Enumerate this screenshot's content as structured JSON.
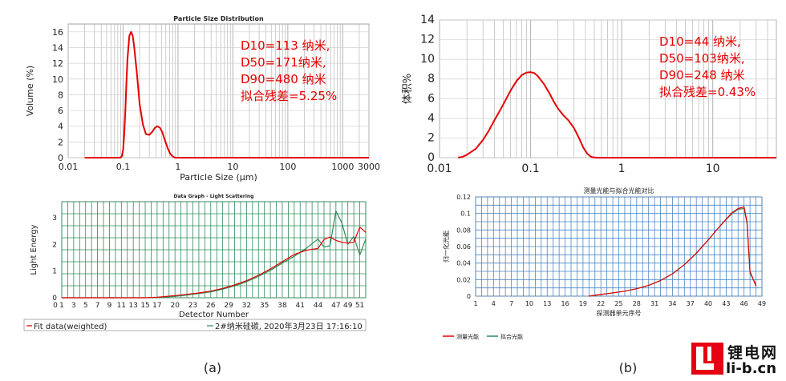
{
  "chart_data": [
    {
      "id": "a_top",
      "type": "line",
      "title": "Particle Size Distribution",
      "xlabel": "Particle Size (μm)",
      "ylabel": "Volume (%)",
      "xscale": "log",
      "xlim": [
        0.01,
        3000
      ],
      "ylim": [
        0,
        17
      ],
      "xticks": [
        "0.01",
        "0.1",
        "1",
        "10",
        "100",
        "1000",
        "3000"
      ],
      "xtick_values": [
        0.01,
        0.1,
        1,
        10,
        100,
        1000,
        3000
      ],
      "yticks": [
        0,
        2,
        4,
        6,
        8,
        10,
        12,
        14,
        16
      ],
      "grid": true,
      "line_color": "#e60000",
      "annotations": [
        "D10=113 纳米,",
        "D50=171纳米,",
        "D90=480 纳米",
        "拟合残差=5.25%"
      ],
      "annotation_color": "#e60000",
      "series": [
        {
          "x": [
            0.02,
            0.09,
            0.095,
            0.1,
            0.105,
            0.11,
            0.115,
            0.12,
            0.13,
            0.14,
            0.15,
            0.16,
            0.18,
            0.2,
            0.23,
            0.26,
            0.3,
            0.34,
            0.38,
            0.42,
            0.47,
            0.52,
            0.58,
            0.65,
            0.72,
            0.8,
            0.85,
            0.9,
            1.0,
            3000
          ],
          "y": [
            0,
            0,
            0.2,
            1.0,
            3.0,
            6.0,
            9.5,
            12.5,
            15.5,
            16.0,
            15.5,
            14.0,
            10.5,
            6.8,
            4.2,
            3.0,
            2.9,
            3.3,
            3.8,
            4.0,
            3.8,
            3.2,
            2.2,
            1.2,
            0.5,
            0.15,
            0.05,
            0,
            0,
            0
          ]
        }
      ]
    },
    {
      "id": "a_bottom",
      "type": "line",
      "title": "Data Graph - Light Scattering",
      "xlabel": "Detector Number",
      "ylabel": "Light Energy",
      "xlim": [
        1,
        52
      ],
      "ylim": [
        0,
        3.6
      ],
      "xticks": [
        1,
        3,
        5,
        7,
        9,
        11,
        13,
        15,
        17,
        19,
        21,
        23,
        25,
        27,
        29,
        31,
        33,
        35,
        37,
        39,
        41,
        43,
        45,
        47,
        49,
        51
      ],
      "xtick_labels": [
        "0",
        "1",
        "3",
        "5",
        "7",
        "9",
        "11",
        "13",
        "15",
        "17",
        "20",
        "23",
        "26",
        "29",
        "32",
        "35",
        "38",
        "41",
        "44",
        "47",
        "49",
        "51"
      ],
      "xtick_label_positions": [
        0,
        1,
        3,
        5,
        7,
        9,
        11,
        13,
        15,
        17,
        20,
        23,
        26,
        29,
        32,
        35,
        38,
        41,
        44,
        47,
        49,
        51
      ],
      "yticks": [
        0,
        1,
        2,
        3
      ],
      "grid": true,
      "grid_color": "#2e8b57",
      "legend": [
        {
          "name": "Fit data(weighted)",
          "color": "#e60000"
        },
        {
          "name": "2#纳米硅碳, 2020年3月23日 17:16:10",
          "color": "#2e8b57"
        }
      ],
      "series": [
        {
          "name": "Fit data(weighted)",
          "color": "#e60000",
          "x": [
            1,
            15,
            17,
            20,
            22,
            24,
            26,
            28,
            30,
            32,
            34,
            36,
            38,
            40,
            42,
            44,
            45,
            46,
            47,
            48,
            49,
            50,
            51,
            52
          ],
          "y": [
            0,
            0,
            0.02,
            0.08,
            0.13,
            0.18,
            0.25,
            0.35,
            0.48,
            0.64,
            0.84,
            1.08,
            1.35,
            1.62,
            1.78,
            1.85,
            2.18,
            2.28,
            2.15,
            2.08,
            2.05,
            2.08,
            2.65,
            2.45
          ]
        },
        {
          "name": "2#纳米硅碳, 2020年3月23日 17:16:10",
          "color": "#2e8b57",
          "x": [
            1,
            15,
            17,
            20,
            22,
            24,
            26,
            28,
            30,
            32,
            34,
            36,
            38,
            40,
            42,
            44,
            45,
            46,
            47,
            48,
            49,
            50,
            51,
            52
          ],
          "y": [
            0,
            0,
            0.01,
            0.05,
            0.1,
            0.16,
            0.22,
            0.32,
            0.45,
            0.6,
            0.8,
            1.03,
            1.3,
            1.55,
            1.85,
            2.2,
            1.9,
            1.95,
            3.25,
            2.8,
            2.0,
            2.3,
            1.6,
            2.2
          ]
        }
      ]
    },
    {
      "id": "b_top",
      "type": "line",
      "xlabel": "",
      "ylabel": "体积%",
      "xscale": "log",
      "xlim": [
        0.01,
        50
      ],
      "ylim": [
        0,
        14
      ],
      "xticks": [
        "0.01",
        "0.1",
        "1",
        "10"
      ],
      "xtick_values": [
        0.01,
        0.1,
        1,
        10
      ],
      "yticks": [
        0,
        2,
        4,
        6,
        8,
        10,
        12,
        14
      ],
      "grid": true,
      "line_color": "#e60000",
      "annotations": [
        "D10=44 纳米,",
        "D50=103纳米,",
        "D90=248 纳米",
        "拟合残差=0.43%"
      ],
      "annotation_color": "#e60000",
      "series": [
        {
          "x": [
            0.016,
            0.018,
            0.02,
            0.025,
            0.03,
            0.035,
            0.04,
            0.05,
            0.06,
            0.07,
            0.08,
            0.09,
            0.1,
            0.11,
            0.12,
            0.14,
            0.16,
            0.18,
            0.2,
            0.23,
            0.26,
            0.3,
            0.34,
            0.38,
            0.42,
            0.46,
            0.5,
            0.55,
            0.6,
            50
          ],
          "y": [
            0,
            0.1,
            0.3,
            0.9,
            1.8,
            2.8,
            3.8,
            5.4,
            6.8,
            7.8,
            8.4,
            8.65,
            8.7,
            8.6,
            8.3,
            7.5,
            6.6,
            5.7,
            5.0,
            4.3,
            3.8,
            3.0,
            2.0,
            1.0,
            0.4,
            0.1,
            0.02,
            0,
            0,
            0
          ]
        }
      ]
    },
    {
      "id": "b_bottom",
      "type": "line",
      "title": "测量光能与拟合光能对比",
      "xlabel": "探测器单元序号",
      "ylabel": "归一化光能",
      "xlim": [
        1,
        49
      ],
      "ylim": [
        0,
        0.12
      ],
      "xticks": [
        1,
        4,
        7,
        10,
        13,
        16,
        19,
        22,
        25,
        28,
        31,
        34,
        37,
        40,
        43,
        46,
        49
      ],
      "yticks": [
        0,
        0.02,
        0.04,
        0.06,
        0.08,
        0.1,
        0.12
      ],
      "ytick_labels": [
        "0",
        "0.02",
        "0.04",
        "0.06",
        "0.08",
        "0.1",
        "0.12"
      ],
      "grid": true,
      "grid_color": "#4a86c5",
      "legend": [
        {
          "name": "测量光能",
          "color": "#e60000"
        },
        {
          "name": "拟合光能",
          "color": "#2e8b57"
        }
      ],
      "series": [
        {
          "name": "测量光能",
          "color": "#e60000",
          "x": [
            20,
            22,
            24,
            26,
            28,
            30,
            32,
            34,
            36,
            38,
            40,
            42,
            44,
            45,
            46,
            46.5,
            47,
            48
          ],
          "y": [
            0,
            0.002,
            0.004,
            0.006,
            0.009,
            0.013,
            0.019,
            0.027,
            0.038,
            0.052,
            0.068,
            0.085,
            0.101,
            0.106,
            0.108,
            0.09,
            0.03,
            0.012
          ]
        },
        {
          "name": "拟合光能",
          "color": "#2e8b57",
          "x": [
            20,
            22,
            24,
            26,
            28,
            30,
            32,
            34,
            36,
            38,
            40,
            42,
            44,
            45,
            46,
            46.5,
            47,
            48
          ],
          "y": [
            0,
            0.002,
            0.004,
            0.006,
            0.009,
            0.013,
            0.019,
            0.027,
            0.038,
            0.052,
            0.068,
            0.085,
            0.1,
            0.105,
            0.106,
            0.088,
            0.028,
            0.014
          ]
        }
      ]
    }
  ],
  "captions": {
    "a": "(a)",
    "b": "(b)"
  },
  "logo": {
    "cn": "锂电网",
    "url": "li-b.cn",
    "color": "#e60012"
  }
}
